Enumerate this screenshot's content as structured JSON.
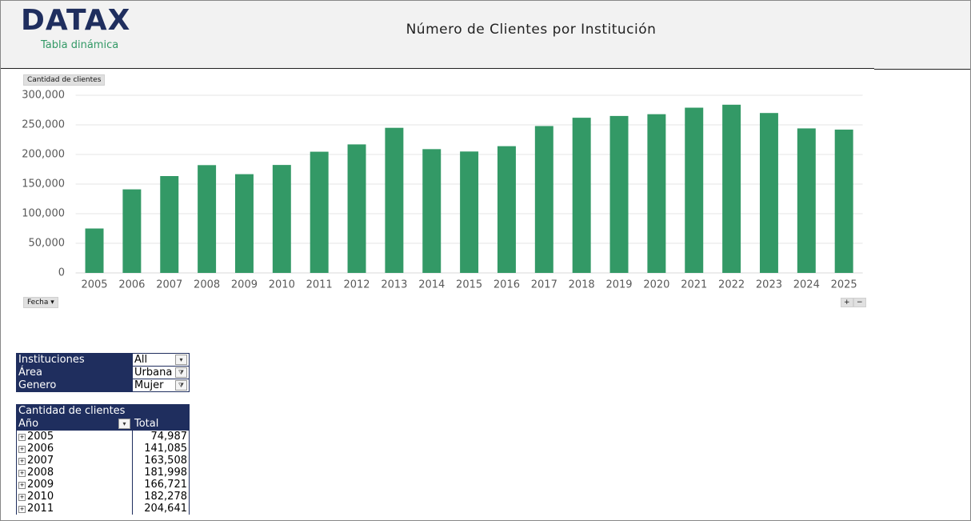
{
  "header": {
    "logo": "DATAX",
    "subtitle": "Tabla dinámica",
    "title": "Número de Clientes por Institución"
  },
  "chart_data": {
    "type": "bar",
    "field_button": "Cantidad de clientes",
    "axis_button": "Fecha",
    "categories": [
      "2005",
      "2006",
      "2007",
      "2008",
      "2009",
      "2010",
      "2011",
      "2012",
      "2013",
      "2014",
      "2015",
      "2016",
      "2017",
      "2018",
      "2019",
      "2020",
      "2021",
      "2022",
      "2023",
      "2024",
      "2025"
    ],
    "values": [
      74987,
      141085,
      163508,
      181998,
      166721,
      182278,
      204641,
      217000,
      245000,
      209000,
      205000,
      214000,
      248000,
      262000,
      265000,
      268000,
      279000,
      284000,
      270000,
      244000,
      242000
    ],
    "color": "#339966",
    "ylim": [
      0,
      300000
    ],
    "yticks": [
      0,
      {
        "value": 50000,
        "label": "50,000"
      },
      {
        "value": 100000,
        "label": "100,000"
      },
      {
        "value": 150000,
        "label": "150,000"
      },
      {
        "value": 200000,
        "label": "200,000"
      },
      {
        "value": 250000,
        "label": "250,000"
      },
      {
        "value": 300000,
        "label": "300,000"
      }
    ],
    "grid": true
  },
  "filters": [
    [
      "Instituciones",
      "All"
    ],
    [
      "Área",
      "Urbana"
    ],
    [
      "Genero",
      "Mujer"
    ]
  ],
  "pivot": {
    "measure": "Cantidad de clientes",
    "row_field": "Año",
    "value_header": "Total",
    "rows": [
      [
        "2005",
        "74,987"
      ],
      [
        "2006",
        "141,085"
      ],
      [
        "2007",
        "163,508"
      ],
      [
        "2008",
        "181,998"
      ],
      [
        "2009",
        "166,721"
      ],
      [
        "2010",
        "182,278"
      ],
      [
        "2011",
        "204,641"
      ]
    ]
  }
}
